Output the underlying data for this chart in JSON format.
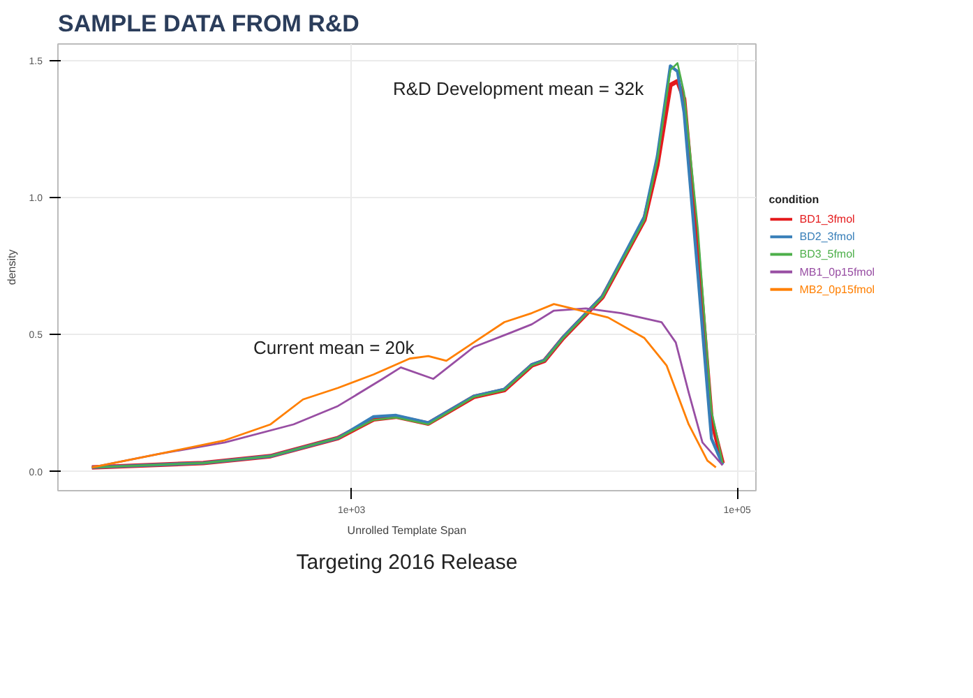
{
  "chart_data": {
    "type": "line",
    "title": "SAMPLE DATA FROM R&D",
    "xlabel": "Unrolled Template Span",
    "ylabel": "density",
    "legend_title": "condition",
    "log": "x",
    "grid": true,
    "legend": "right",
    "xlim": [
      30,
      125000
    ],
    "ylim": [
      -0.07,
      1.56
    ],
    "xticks": [
      {
        "value": 1000,
        "label": "1e+03"
      },
      {
        "value": 100000,
        "label": "1e+05"
      }
    ],
    "yticks": [
      {
        "value": 0,
        "label": "0.0"
      },
      {
        "value": 0.5,
        "label": "0.5"
      },
      {
        "value": 1,
        "label": "1.0"
      },
      {
        "value": 1.5,
        "label": "1.5"
      }
    ],
    "annotations": [
      "R&D Development mean = 32k",
      "Current mean = 20k",
      "Targeting 2016 Release"
    ],
    "series": [
      {
        "name": "BD1_3fmol",
        "color": "#e41a1c",
        "x": [
          45,
          170,
          380,
          850,
          1300,
          1700,
          2500,
          4300,
          6200,
          8600,
          10000,
          12500,
          20000,
          33000,
          38500,
          45000,
          49000,
          53000,
          62500,
          73500,
          84000
        ],
        "values": [
          0.015,
          0.031,
          0.056,
          0.122,
          0.19,
          0.2,
          0.175,
          0.272,
          0.297,
          0.387,
          0.404,
          0.487,
          0.636,
          0.918,
          1.118,
          1.41,
          1.424,
          1.36,
          0.8,
          0.19,
          0.03
        ]
      },
      {
        "name": "BD2_3fmol",
        "color": "#377eb8",
        "x": [
          45,
          170,
          380,
          850,
          1300,
          1700,
          2500,
          4300,
          6200,
          8600,
          10000,
          12500,
          20000,
          33000,
          38500,
          45000,
          49000,
          53000,
          62500,
          73500,
          84000
        ],
        "values": [
          0.015,
          0.031,
          0.056,
          0.122,
          0.2,
          0.205,
          0.178,
          0.275,
          0.3,
          0.39,
          0.406,
          0.49,
          0.64,
          0.93,
          1.15,
          1.48,
          1.46,
          1.31,
          0.72,
          0.12,
          0.025
        ]
      },
      {
        "name": "BD3_5fmol",
        "color": "#4daf4a",
        "x": [
          45,
          170,
          380,
          850,
          1300,
          1700,
          2500,
          4300,
          6200,
          8600,
          10000,
          12500,
          20000,
          33000,
          38500,
          45000,
          49000,
          53000,
          62500,
          73500,
          84000
        ],
        "values": [
          0.015,
          0.031,
          0.056,
          0.122,
          0.188,
          0.197,
          0.172,
          0.272,
          0.297,
          0.387,
          0.404,
          0.487,
          0.636,
          0.918,
          1.134,
          1.465,
          1.49,
          1.382,
          0.885,
          0.222,
          0.031
        ]
      },
      {
        "name": "MB1_0p15fmol",
        "color": "#984ea3",
        "x": [
          45,
          100,
          220,
          500,
          850,
          1450,
          1800,
          2650,
          4300,
          6550,
          8600,
          11200,
          16400,
          25000,
          40500,
          48000,
          56000,
          66000,
          84000
        ],
        "values": [
          0.015,
          0.064,
          0.106,
          0.172,
          0.239,
          0.338,
          0.38,
          0.338,
          0.454,
          0.504,
          0.537,
          0.587,
          0.595,
          0.578,
          0.545,
          0.471,
          0.288,
          0.106,
          0.023
        ]
      },
      {
        "name": "MB2_0p15fmol",
        "color": "#ff7f00",
        "x": [
          45,
          100,
          220,
          380,
          560,
          850,
          1300,
          2000,
          2500,
          3100,
          4300,
          6200,
          8600,
          11200,
          13900,
          21400,
          33000,
          43000,
          56000,
          70000,
          77500
        ],
        "values": [
          0.015,
          0.064,
          0.114,
          0.172,
          0.263,
          0.305,
          0.354,
          0.412,
          0.421,
          0.404,
          0.471,
          0.545,
          0.578,
          0.611,
          0.595,
          0.562,
          0.487,
          0.387,
          0.172,
          0.04,
          0.015
        ]
      }
    ]
  }
}
